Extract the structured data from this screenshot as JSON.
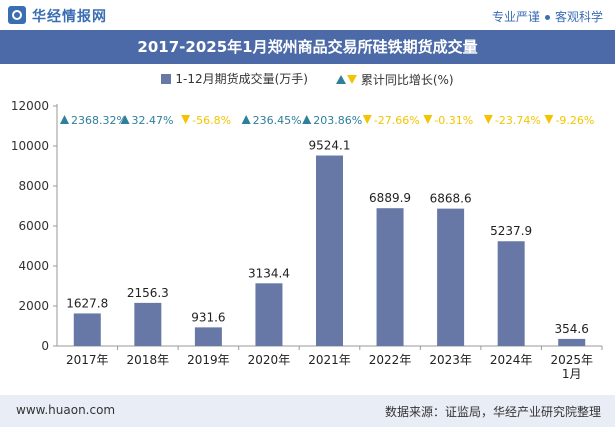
{
  "header": {
    "brand": "华经情报网",
    "tagline_left": "专业严谨",
    "tagline_right": "客观科学",
    "title": "2017-2025年1月郑州商品交易所硅铁期货成交量"
  },
  "legend": {
    "series_label": "1-12月期货成交量(万手)",
    "growth_label": "累计同比增长(%)"
  },
  "footer": {
    "url": "www.huaon.com",
    "source": "数据来源：证监局，华经产业研究院整理"
  },
  "colors": {
    "bar": "#6778a7",
    "up": "#2e7f9a",
    "down": "#f5c400",
    "title_bg": "#4d6aa8"
  },
  "chart_data": {
    "type": "bar",
    "categories": [
      "2017年",
      "2018年",
      "2019年",
      "2020年",
      "2021年",
      "2022年",
      "2023年",
      "2024年",
      "2025年\n1月"
    ],
    "series": [
      {
        "name": "1-12月期货成交量(万手)",
        "values": [
          1627.8,
          2156.3,
          931.6,
          3134.4,
          9524.1,
          6889.9,
          6868.6,
          5237.9,
          354.6
        ],
        "labels": [
          "1627.8",
          "2156.3",
          "931.6",
          "3134.4",
          "9524.1",
          "6889.9",
          "6868.6",
          "5237.9",
          "354.6"
        ]
      },
      {
        "name": "累计同比增长(%)",
        "values": [
          2368.32,
          32.47,
          -56.8,
          236.45,
          203.86,
          -27.66,
          -0.31,
          -23.74,
          -9.26
        ],
        "labels": [
          "2368.32%",
          "32.47%",
          "-56.8%",
          "236.45%",
          "203.86%",
          "-27.66%",
          "-0.31%",
          "-23.74%",
          "-9.26%"
        ]
      }
    ],
    "ylim": [
      0,
      12000
    ],
    "yticks": [
      "0",
      "2000",
      "4000",
      "6000",
      "8000",
      "10000",
      "12000"
    ],
    "grid": false,
    "legend_position": "top"
  }
}
